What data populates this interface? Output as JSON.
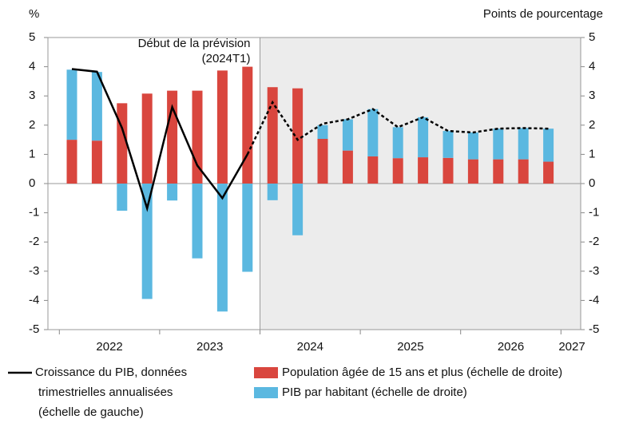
{
  "chart_data": {
    "type": "bar-line",
    "y_label": "%",
    "y2_label": "Points de pourcentage",
    "annotation": [
      "Début de la prévision",
      "(2024T1)"
    ],
    "forecast_start": 8,
    "x_labels": [
      "2022",
      "2023",
      "2024",
      "2025",
      "2026",
      "2027"
    ],
    "ylim": [
      -5,
      5
    ],
    "yticks": [
      -5,
      -4,
      -3,
      -2,
      -1,
      0,
      1,
      2,
      3,
      4,
      5
    ],
    "y2lim": [
      -5,
      5
    ],
    "y2ticks": [
      -5,
      -4,
      -3,
      -2,
      -1,
      0,
      1,
      2,
      3,
      4,
      5
    ],
    "series": [
      {
        "name": "Population âgée de 15 ans et plus (échelle de droite)",
        "kind": "bar",
        "axis": "y2",
        "color": "#d9463e",
        "values": [
          1.5,
          1.47,
          2.75,
          3.08,
          3.18,
          3.18,
          3.87,
          4.0,
          3.3,
          3.26,
          1.53,
          1.13,
          0.93,
          0.87,
          0.9,
          0.88,
          0.83,
          0.83,
          0.83,
          0.75
        ]
      },
      {
        "name": "PIB par habitant (échelle de droite)",
        "kind": "bar",
        "axis": "y2",
        "color": "#5bb8e0",
        "values": [
          2.4,
          2.35,
          -0.93,
          -3.95,
          -0.58,
          -2.56,
          -4.38,
          -3.02,
          -0.57,
          -1.77,
          0.47,
          1.07,
          1.62,
          1.06,
          1.37,
          0.92,
          0.92,
          1.05,
          1.07,
          1.13
        ]
      },
      {
        "name": [
          "Croissance du PIB, données",
          "trimestrielles annualisées",
          "(échelle de gauche)"
        ],
        "kind": "line",
        "color": "#000000",
        "values": [
          3.92,
          3.83,
          1.9,
          -0.85,
          2.62,
          0.62,
          -0.5,
          1.0,
          2.78,
          1.5,
          2.05,
          2.2,
          2.55,
          1.93,
          2.27,
          1.8,
          1.75,
          1.88,
          1.9,
          1.88
        ]
      }
    ]
  }
}
